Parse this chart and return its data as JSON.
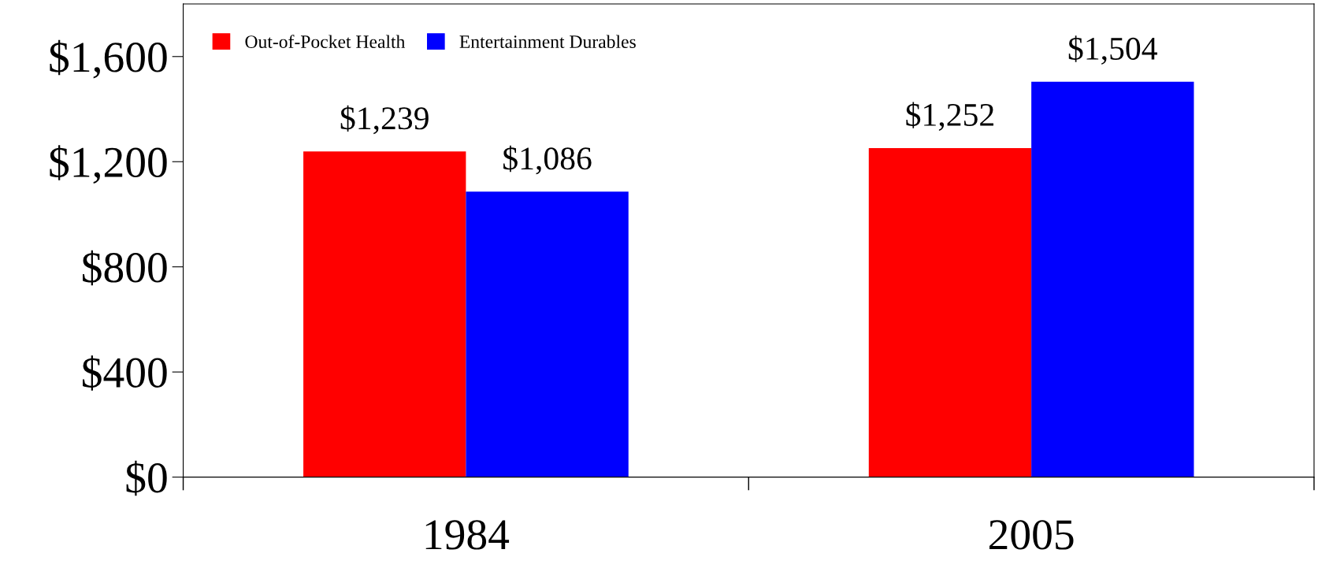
{
  "chart_data": {
    "type": "bar",
    "categories": [
      "1984",
      "2005"
    ],
    "series": [
      {
        "name": "Out-of-Pocket Health",
        "color": "#ff0000",
        "values": [
          1239,
          1252
        ]
      },
      {
        "name": "Entertainment Durables",
        "color": "#0000ff",
        "values": [
          1086,
          1504
        ]
      }
    ],
    "value_labels": [
      [
        "$1,239",
        "$1,252"
      ],
      [
        "$1,086",
        "$1,504"
      ]
    ],
    "ylim": [
      0,
      1800
    ],
    "yticks": [
      {
        "value": 0,
        "label": "$0"
      },
      {
        "value": 400,
        "label": "$400"
      },
      {
        "value": 800,
        "label": "$800"
      },
      {
        "value": 1200,
        "label": "$1,200"
      },
      {
        "value": 1600,
        "label": "$1,600"
      }
    ],
    "grid": false,
    "legend": "top left"
  }
}
